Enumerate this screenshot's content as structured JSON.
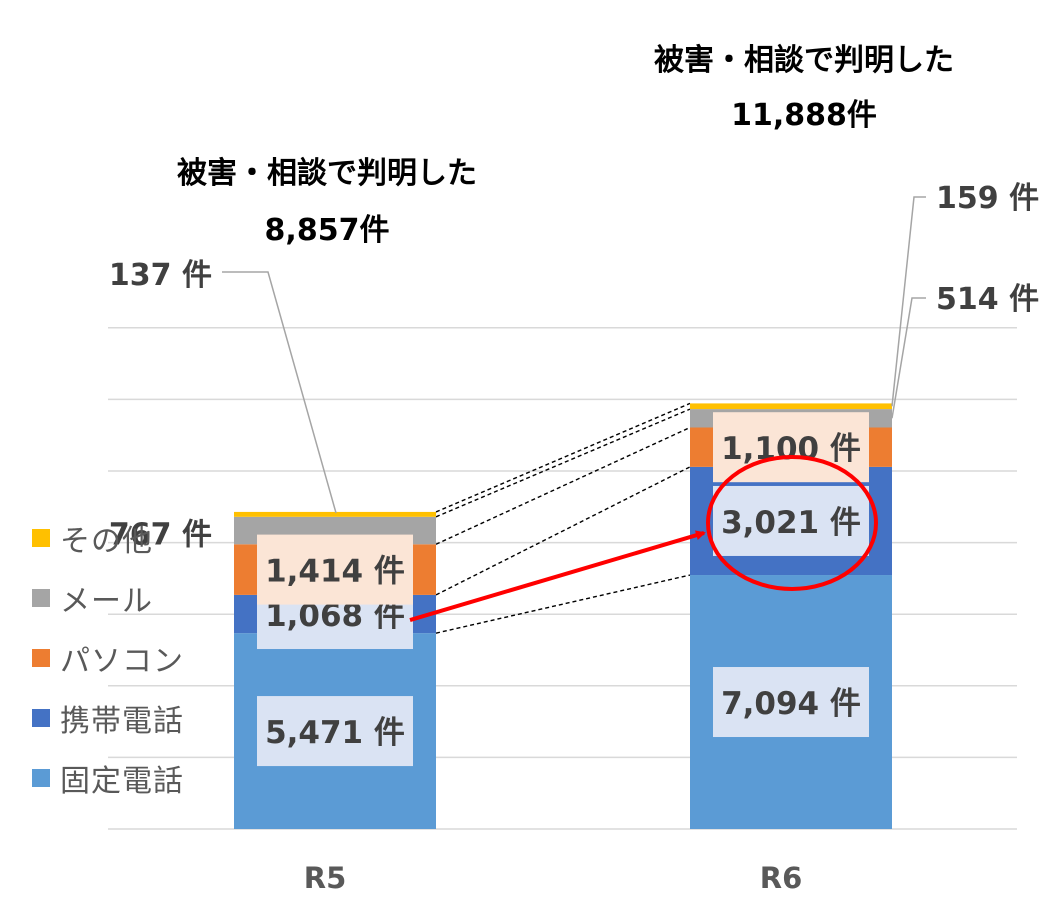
{
  "chart_data": {
    "type": "bar",
    "stacked": true,
    "categories": [
      "R5",
      "R6"
    ],
    "series": [
      {
        "name": "固定電話",
        "color": "#5b9bd5",
        "values": [
          5471,
          7094
        ],
        "labels": [
          "5,471 件",
          "7,094 件"
        ]
      },
      {
        "name": "携帯電話",
        "color": "#4472c4",
        "values": [
          1068,
          3021
        ],
        "labels": [
          "1,068 件",
          "3,021 件"
        ]
      },
      {
        "name": "パソコン",
        "color": "#ed7d31",
        "values": [
          1414,
          1100
        ],
        "labels": [
          "1,414 件",
          "1,100 件"
        ]
      },
      {
        "name": "メール",
        "color": "#a5a5a5",
        "values": [
          767,
          514
        ],
        "labels": [
          "767 件",
          "514 件"
        ]
      },
      {
        "name": "その他",
        "color": "#ffc000",
        "values": [
          137,
          159
        ],
        "labels": [
          "137 件",
          "159 件"
        ]
      }
    ],
    "totals": [
      {
        "title": "被害・相談で判明した",
        "value": 8857,
        "text": "8,857件"
      },
      {
        "title": "被害・相談で判明した",
        "value": 11888,
        "text": "11,888件"
      }
    ],
    "legend_order": [
      "その他",
      "メール",
      "パソコン",
      "携帯電話",
      "固定電話"
    ],
    "legend_position": "left",
    "highlight": {
      "category": "R6",
      "series": "携帯電話",
      "color": "#ff0000"
    },
    "ylim": [
      0,
      14000
    ],
    "grid": true
  }
}
